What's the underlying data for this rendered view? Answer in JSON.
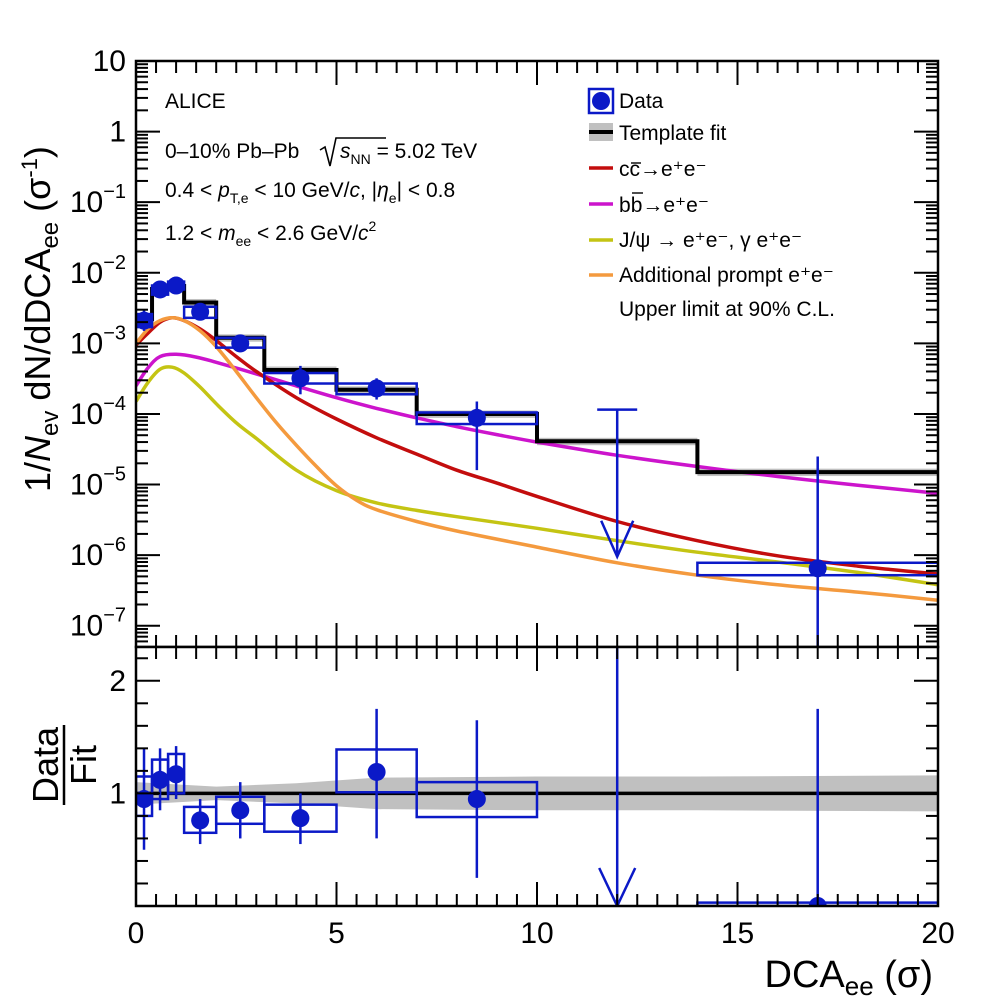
{
  "chart_data": {
    "type": "line",
    "experiment_label": "ALICE",
    "annotations": {
      "line1_prefix": "0–10% Pb–Pb",
      "line1_sqrt": "s",
      "line1_sub": "NN",
      "line1_suffix": " = 5.02 TeV",
      "line2_a": "0.4 < ",
      "line2_p": "p",
      "line2_psub": "T,e",
      "line2_b": " < 10 GeV/",
      "line2_c": "c",
      "line2_d": ", |",
      "line2_eta": "η",
      "line2_etasub": "e",
      "line2_e": "| < 0.8",
      "line3_a": "1.2 < ",
      "line3_m": "m",
      "line3_msub": "ee",
      "line3_b": " < 2.6 GeV/",
      "line3_c": "c",
      "line3_sup": "2"
    },
    "legend": {
      "data": "Data",
      "template": "Template fit",
      "cc_a": "c",
      "cc_b": "c",
      "cc_rest": "→e⁺e⁻",
      "bb_a": "b",
      "bb_b": "b",
      "bb_rest": "→e⁺e⁻",
      "jpsi": "J/ψ → e⁺e⁻, γ e⁺e⁻",
      "prompt": "Additional prompt e⁺e⁻",
      "upper_limit": "Upper limit at 90% C.L."
    },
    "colors": {
      "data": "#0b19c7",
      "template": "#000000",
      "template_band": "#c0c0c0",
      "cc": "#c30d0d",
      "bb": "#cc14cc",
      "jpsi": "#c4c413",
      "prompt": "#f49a3e"
    },
    "top_panel": {
      "yaxis": {
        "scale": "log",
        "ylim": [
          5e-08,
          10
        ],
        "label_a": "1/",
        "label_n": "N",
        "label_nsub": "ev",
        "label_b": " dN/dDCA",
        "label_bsub": "ee",
        "label_c": " (σ",
        "label_csup": "-1",
        "label_d": ")",
        "ticks": [
          {
            "v": 10,
            "t": "10"
          },
          {
            "v": 1,
            "t": "1"
          },
          {
            "v": 0.1,
            "t": "10",
            "e": "−1"
          },
          {
            "v": 0.01,
            "t": "10",
            "e": "−2"
          },
          {
            "v": 0.001,
            "t": "10",
            "e": "−3"
          },
          {
            "v": 0.0001,
            "t": "10",
            "e": "−4"
          },
          {
            "v": 1e-05,
            "t": "10",
            "e": "−5"
          },
          {
            "v": 1e-06,
            "t": "10",
            "e": "−6"
          },
          {
            "v": 1e-07,
            "t": "10",
            "e": "−7"
          }
        ]
      },
      "bin_edges": [
        0,
        0.4,
        0.8,
        1.2,
        2.0,
        3.2,
        5,
        7,
        10,
        14,
        20
      ],
      "template_fit": [
        0.0022,
        0.0059,
        0.0065,
        0.0038,
        0.0012,
        0.00042,
        0.00022,
        0.0001,
        4.1e-05,
        1.5e-05
      ],
      "template_band_rel": 0.12,
      "data_points": [
        {
          "x": 0.2,
          "y": 0.0021,
          "up": 0.003,
          "lo": 0.0015,
          "syst_lo": 0.0017,
          "syst_hi": 0.0026
        },
        {
          "x": 0.6,
          "y": 0.0058,
          "up": 0.007,
          "lo": 0.005,
          "syst_lo": 0.0049,
          "syst_hi": 0.0066
        },
        {
          "x": 1.0,
          "y": 0.0066,
          "up": 0.0076,
          "lo": 0.0058,
          "syst_lo": 0.0058,
          "syst_hi": 0.0075
        },
        {
          "x": 1.6,
          "y": 0.0028,
          "up": 0.0035,
          "lo": 0.0022,
          "syst_lo": 0.0023,
          "syst_hi": 0.0033
        },
        {
          "x": 2.6,
          "y": 0.001,
          "up": 0.0013,
          "lo": 0.00075,
          "syst_lo": 0.00087,
          "syst_hi": 0.0012
        },
        {
          "x": 4.1,
          "y": 0.00032,
          "up": 0.00048,
          "lo": 0.00019,
          "syst_lo": 0.00027,
          "syst_hi": 0.00038
        },
        {
          "x": 6.0,
          "y": 0.00023,
          "up": 0.00032,
          "lo": 0.00016,
          "syst_lo": 0.00019,
          "syst_hi": 0.00027
        },
        {
          "x": 8.5,
          "y": 8.8e-05,
          "up": 0.00015,
          "lo": 1.6e-05,
          "syst_lo": 7.2e-05,
          "syst_hi": 0.000105
        },
        {
          "x": 17.0,
          "y": 6.5e-07,
          "up": 2.5e-05,
          "lo": 5e-08,
          "syst_lo": 5.2e-07,
          "syst_hi": 7.8e-07
        }
      ],
      "upper_limit": {
        "x": 12,
        "y_top": 0.000115,
        "y_tip": 9.5e-07
      },
      "curves": {
        "cc": [
          [
            0,
            0.00095
          ],
          [
            0.3,
            0.0014
          ],
          [
            0.6,
            0.002
          ],
          [
            0.9,
            0.0023
          ],
          [
            1.2,
            0.0021
          ],
          [
            1.6,
            0.0016
          ],
          [
            2.0,
            0.0011
          ],
          [
            2.5,
            0.00065
          ],
          [
            3.0,
            0.0004
          ],
          [
            4.0,
            0.00017
          ],
          [
            5.0,
            8.5e-05
          ],
          [
            6.0,
            4.6e-05
          ],
          [
            7.0,
            2.7e-05
          ],
          [
            8.0,
            1.6e-05
          ],
          [
            9.0,
            1.05e-05
          ],
          [
            10.0,
            6.8e-06
          ],
          [
            12.0,
            3e-06
          ],
          [
            14.0,
            1.6e-06
          ],
          [
            16.0,
            9.8e-07
          ],
          [
            18.0,
            7e-07
          ],
          [
            20.0,
            5.4e-07
          ]
        ],
        "bb": [
          [
            0,
            0.00025
          ],
          [
            0.3,
            0.00045
          ],
          [
            0.6,
            0.00065
          ],
          [
            1.0,
            0.0007
          ],
          [
            1.5,
            0.00064
          ],
          [
            2.0,
            0.00054
          ],
          [
            3.0,
            0.00037
          ],
          [
            4.0,
            0.00025
          ],
          [
            5.0,
            0.00017
          ],
          [
            6.0,
            0.00012
          ],
          [
            7.0,
            8.8e-05
          ],
          [
            8.0,
            6.6e-05
          ],
          [
            9.0,
            5.1e-05
          ],
          [
            10.0,
            4e-05
          ],
          [
            12.0,
            2.6e-05
          ],
          [
            14.0,
            1.8e-05
          ],
          [
            16.0,
            1.3e-05
          ],
          [
            18.0,
            9.8e-06
          ],
          [
            20.0,
            7.5e-06
          ]
        ],
        "jpsi": [
          [
            0,
            0.00015
          ],
          [
            0.3,
            0.00028
          ],
          [
            0.6,
            0.00043
          ],
          [
            0.9,
            0.00046
          ],
          [
            1.2,
            0.00038
          ],
          [
            1.6,
            0.00024
          ],
          [
            2.0,
            0.00014
          ],
          [
            2.5,
            7.5e-05
          ],
          [
            3.0,
            4.5e-05
          ],
          [
            4.0,
            1.6e-05
          ],
          [
            5.0,
            8.2e-06
          ],
          [
            6.0,
            5.5e-06
          ],
          [
            7.0,
            4.3e-06
          ],
          [
            8.0,
            3.5e-06
          ],
          [
            10.0,
            2.4e-06
          ],
          [
            12.0,
            1.6e-06
          ],
          [
            14.0,
            1.1e-06
          ],
          [
            16.0,
            8e-07
          ],
          [
            18.0,
            5.7e-07
          ],
          [
            20.0,
            3.8e-07
          ]
        ],
        "prompt": [
          [
            0,
            0.001
          ],
          [
            0.3,
            0.0016
          ],
          [
            0.6,
            0.0021
          ],
          [
            0.9,
            0.0023
          ],
          [
            1.2,
            0.0021
          ],
          [
            1.6,
            0.0015
          ],
          [
            2.0,
            0.0009
          ],
          [
            2.5,
            0.0004
          ],
          [
            3.0,
            0.00017
          ],
          [
            3.5,
            7.5e-05
          ],
          [
            4.0,
            3.6e-05
          ],
          [
            4.5,
            1.8e-05
          ],
          [
            5.0,
            9.6e-06
          ],
          [
            5.5,
            6e-06
          ],
          [
            6.0,
            4.4e-06
          ],
          [
            7.0,
            3e-06
          ],
          [
            8.0,
            2.2e-06
          ],
          [
            10.0,
            1.3e-06
          ],
          [
            12.0,
            7.8e-07
          ],
          [
            14.0,
            5.2e-07
          ],
          [
            16.0,
            3.8e-07
          ],
          [
            18.0,
            3e-07
          ],
          [
            20.0,
            2.3e-07
          ]
        ]
      }
    },
    "bottom_panel": {
      "ylabel_num": "Data",
      "ylabel_den": "Fit",
      "ylim": [
        0,
        2.3
      ],
      "ticks": [
        {
          "v": 1,
          "t": "1"
        },
        {
          "v": 2,
          "t": "2"
        }
      ],
      "band": [
        [
          0,
          0.1
        ],
        [
          2,
          0.06
        ],
        [
          4,
          0.09
        ],
        [
          6,
          0.14
        ],
        [
          10,
          0.15
        ],
        [
          14,
          0.15
        ],
        [
          20,
          0.16
        ]
      ],
      "points": [
        {
          "x": 0.2,
          "r": 0.95,
          "up": 1.4,
          "lo": 0.5,
          "x0": 0.0,
          "x1": 0.4,
          "syst_lo": 0.8,
          "syst_hi": 1.15
        },
        {
          "x": 0.6,
          "r": 1.12,
          "up": 1.4,
          "lo": 0.85,
          "x0": 0.4,
          "x1": 0.8,
          "syst_lo": 0.95,
          "syst_hi": 1.3
        },
        {
          "x": 1.0,
          "r": 1.17,
          "up": 1.42,
          "lo": 0.95,
          "x0": 0.8,
          "x1": 1.2,
          "syst_lo": 1.0,
          "syst_hi": 1.35
        },
        {
          "x": 1.6,
          "r": 0.76,
          "up": 0.95,
          "lo": 0.55,
          "x0": 1.2,
          "x1": 2.0,
          "syst_lo": 0.65,
          "syst_hi": 0.88
        },
        {
          "x": 2.6,
          "r": 0.85,
          "up": 1.1,
          "lo": 0.6,
          "x0": 2.0,
          "x1": 3.2,
          "syst_lo": 0.73,
          "syst_hi": 0.97
        },
        {
          "x": 4.1,
          "r": 0.78,
          "up": 1.0,
          "lo": 0.55,
          "x0": 3.2,
          "x1": 5.0,
          "syst_lo": 0.66,
          "syst_hi": 0.9
        },
        {
          "x": 6.0,
          "r": 1.19,
          "up": 1.75,
          "lo": 0.6,
          "x0": 5.0,
          "x1": 7.0,
          "syst_lo": 1.01,
          "syst_hi": 1.39
        },
        {
          "x": 8.5,
          "r": 0.95,
          "up": 1.65,
          "lo": 0.25,
          "x0": 7.0,
          "x1": 10.0,
          "syst_lo": 0.79,
          "syst_hi": 1.1
        },
        {
          "x": 17.0,
          "r": 0.0,
          "up": 1.75,
          "lo": 0.0,
          "x0": 14.0,
          "x1": 20.0,
          "syst_lo": 0.0,
          "syst_hi": 0.03
        }
      ],
      "upper_limit": {
        "x": 12,
        "r_top": 2.3,
        "r_tip": 0.0
      }
    },
    "xaxis": {
      "xlim": [
        0,
        20
      ],
      "ticks": [
        0,
        5,
        10,
        15,
        20
      ],
      "label_a": "DCA",
      "label_sub": "ee",
      "label_b": " (σ)"
    }
  }
}
